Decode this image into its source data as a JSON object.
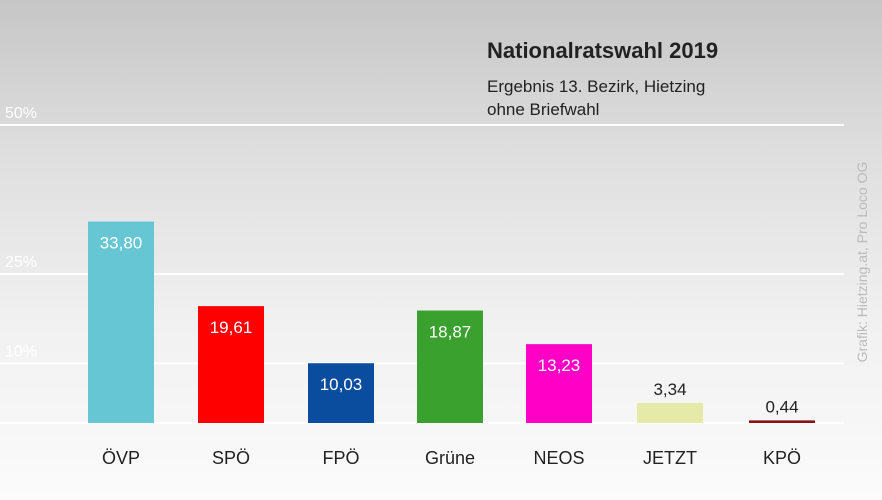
{
  "chart_data": {
    "type": "bar",
    "title": "Nationalratswahl 2019",
    "subtitle_lines": [
      "Ergebnis 13. Bezirk, Hietzing",
      "ohne Briefwahl"
    ],
    "categories": [
      "ÖVP",
      "SPÖ",
      "FPÖ",
      "Grüne",
      "NEOS",
      "JETZT",
      "KPÖ"
    ],
    "values": [
      33.8,
      19.61,
      10.03,
      18.87,
      13.23,
      3.34,
      0.44
    ],
    "value_labels": [
      "33,80",
      "19,61",
      "10,03",
      "18,87",
      "13,23",
      "3,34",
      "0,44"
    ],
    "colors": [
      "#66c6d4",
      "#ff0000",
      "#0a4d9e",
      "#3aa02e",
      "#ff00c6",
      "#e5eaa8",
      "#8a0e12"
    ],
    "label_colors": [
      "#ffffff",
      "#ffffff",
      "#ffffff",
      "#ffffff",
      "#ffffff",
      "#222222",
      "#222222"
    ],
    "label_inside": [
      true,
      true,
      true,
      true,
      true,
      false,
      false
    ],
    "y_reference_lines": [
      {
        "value": 50,
        "label": "50%"
      },
      {
        "value": 25,
        "label": "25%"
      },
      {
        "value": 10,
        "label": "10%"
      }
    ],
    "ylim": [
      0,
      50
    ],
    "xlabel": "",
    "ylabel": "",
    "legend": "none",
    "credit": "Grafik: Hietzing.at, Pro Loco OG"
  }
}
